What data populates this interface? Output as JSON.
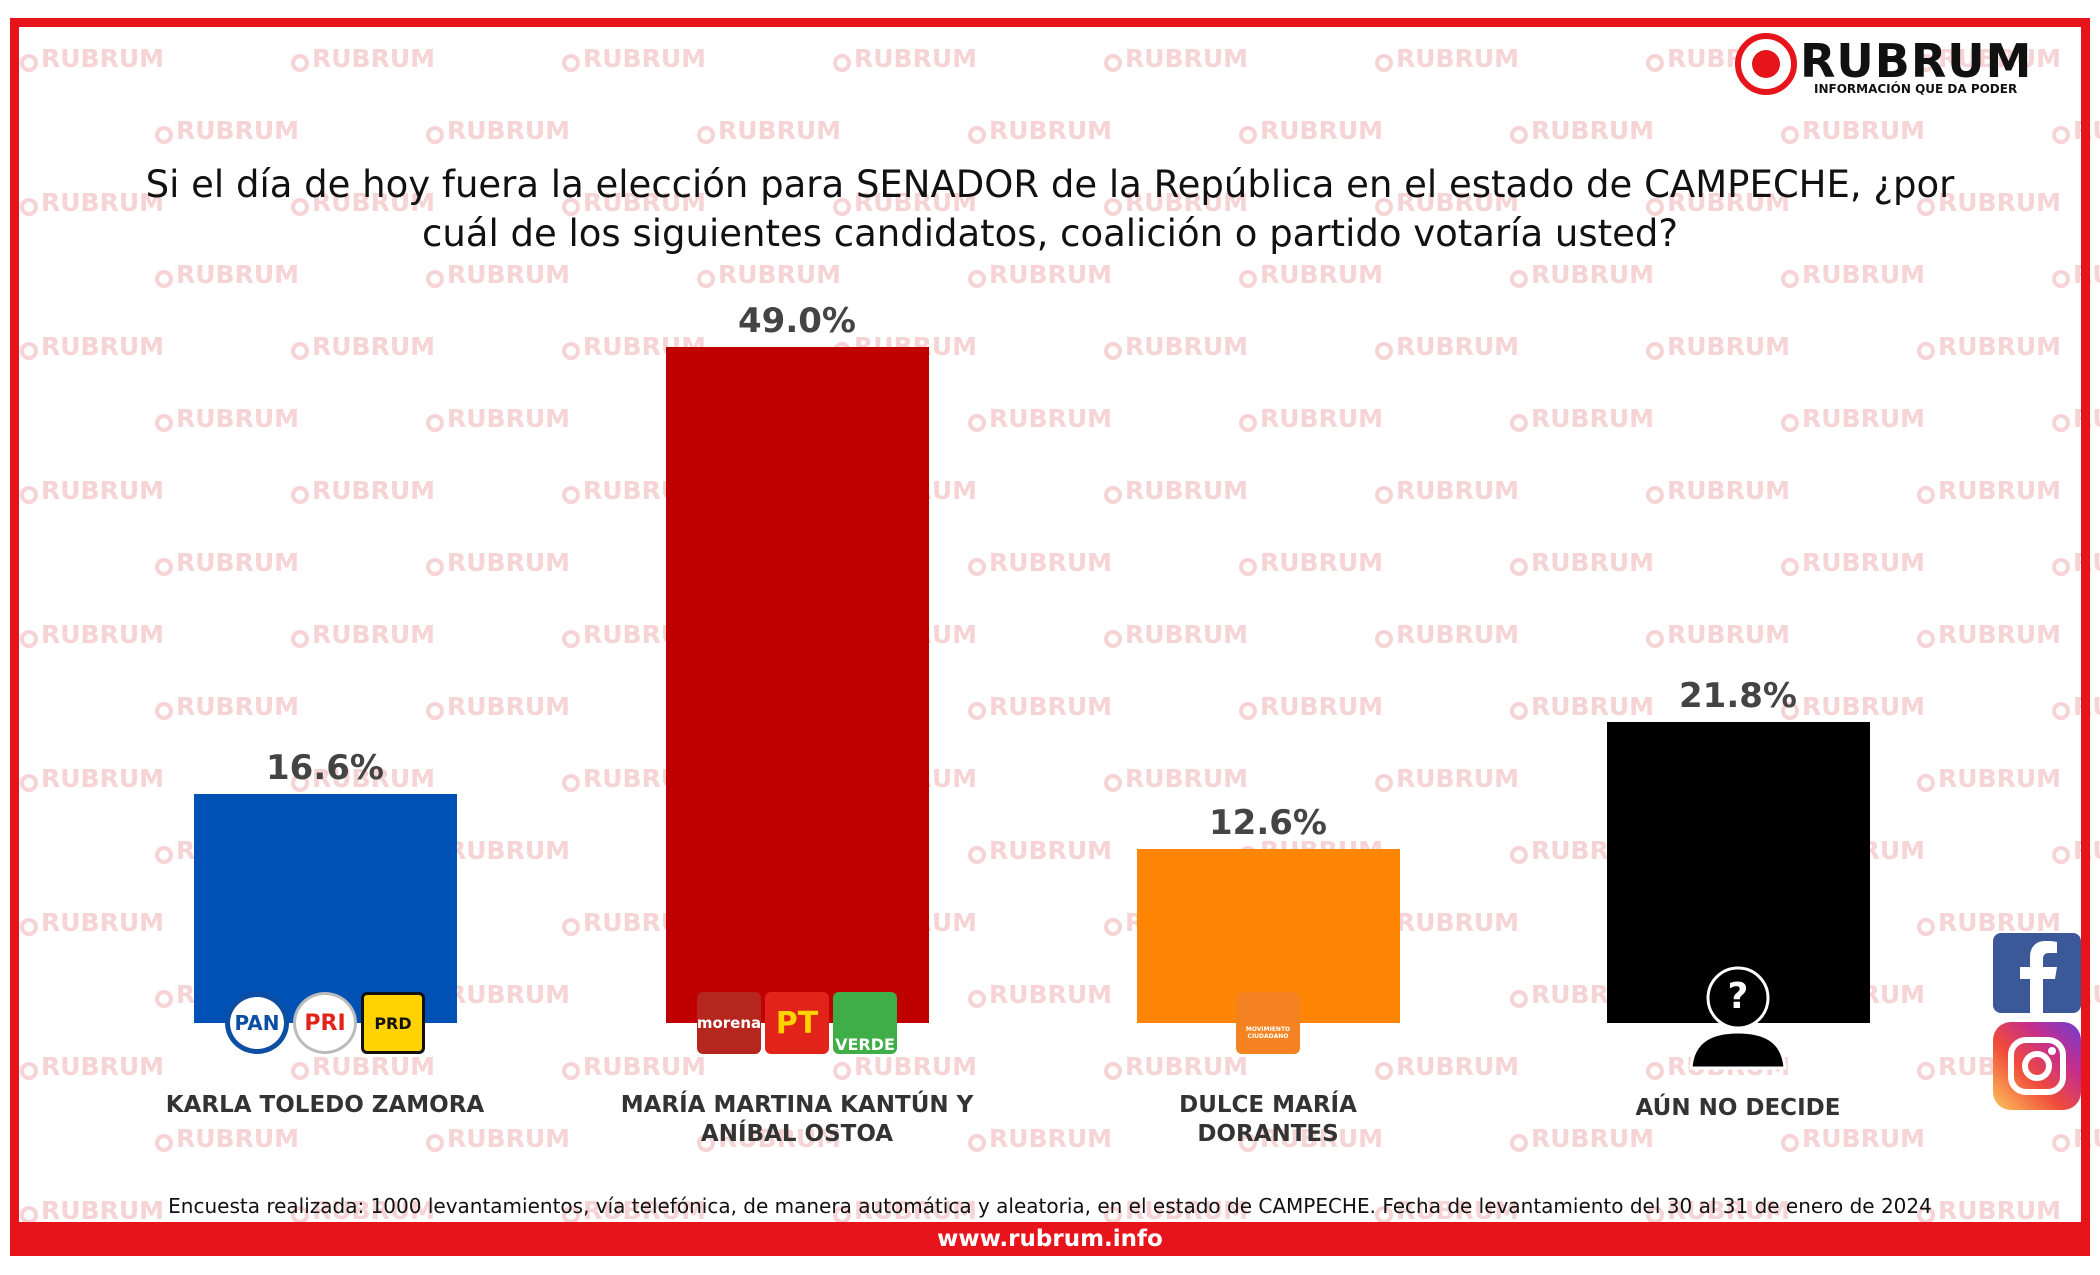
{
  "brand": {
    "name": "RUBRUM",
    "tagline": "INFORMACIÓN QUE DA PODER",
    "url": "www.rubrum.info",
    "watermark": "RUBRUM"
  },
  "chart_data": {
    "type": "bar",
    "title": "Si el día de hoy fuera la elección para SENADOR de la República en el estado de CAMPECHE, ¿por cuál de los siguientes candidatos, coalición o partido votaría usted?",
    "categories": [
      "KARLA TOLEDO ZAMORA",
      "MARÍA MARTINA KANTÚN Y\nANÍBAL OSTOA",
      "DULCE MARÍA\nDORANTES",
      "AÚN NO DECIDE"
    ],
    "values": [
      16.6,
      49.0,
      12.6,
      21.8
    ],
    "value_labels": [
      "16.6%",
      "49.0%",
      "12.6%",
      "21.8%"
    ],
    "colors": [
      "#0051b5",
      "#c00000",
      "#ff8605",
      "#000000"
    ],
    "logos": [
      [
        "PAN",
        "PRI",
        "PRD"
      ],
      [
        "morena",
        "PT",
        "VERDE"
      ],
      [
        "MOVIMIENTO CIUDADANO"
      ],
      [
        "?"
      ]
    ]
  },
  "footnote": "Encuesta realizada: 1000 levantamientos, vía telefónica, de manera automática y aleatoria, en el estado de CAMPECHE. Fecha de levantamiento del 30 al 31 de enero de 2024"
}
